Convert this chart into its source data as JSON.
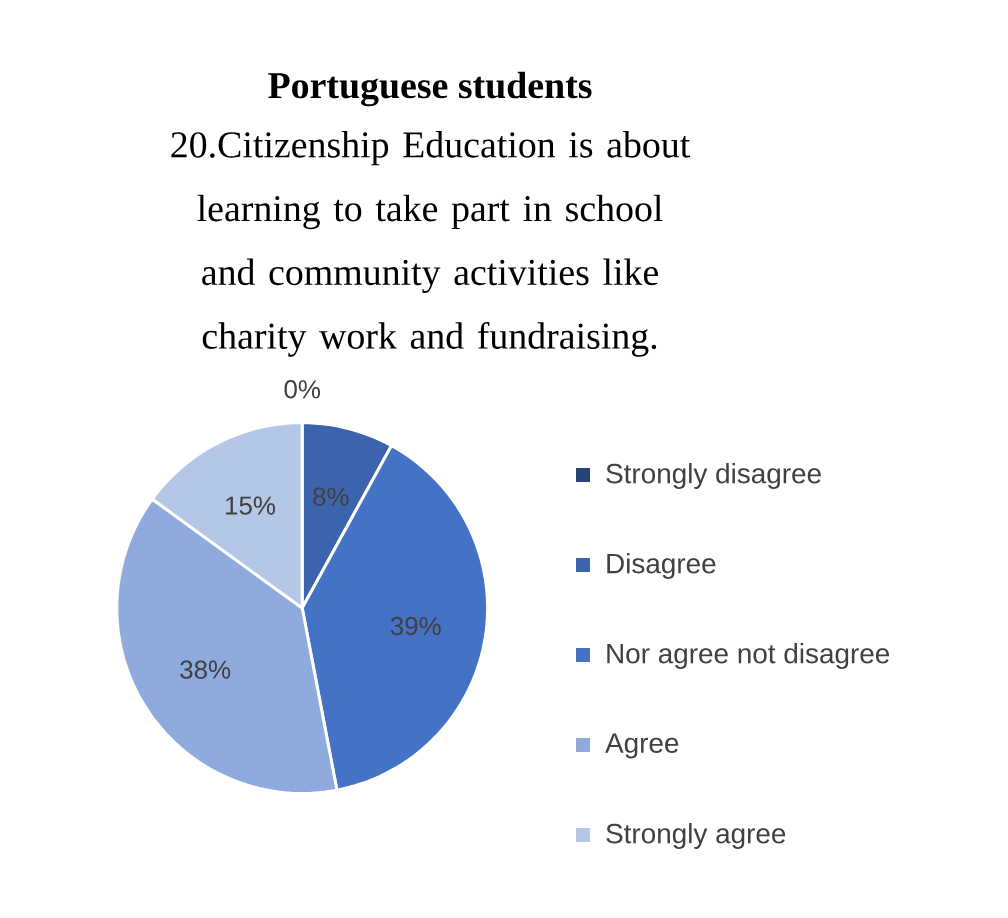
{
  "chart_data": {
    "type": "pie",
    "title": "Portuguese students",
    "subtitle": "20.Citizenship Education is about learning to take part in school and community activities like charity work and fundraising.",
    "categories": [
      "Strongly disagree",
      "Disagree",
      "Nor agree not disagree",
      "Agree",
      "Strongly agree"
    ],
    "values": [
      0,
      8,
      39,
      38,
      15
    ],
    "value_labels": [
      "0%",
      "8%",
      "39%",
      "38%",
      "15%"
    ],
    "colors": [
      "#264478",
      "#3b64ad",
      "#4472c4",
      "#8faadc",
      "#b4c7e7"
    ],
    "legend": "right"
  }
}
